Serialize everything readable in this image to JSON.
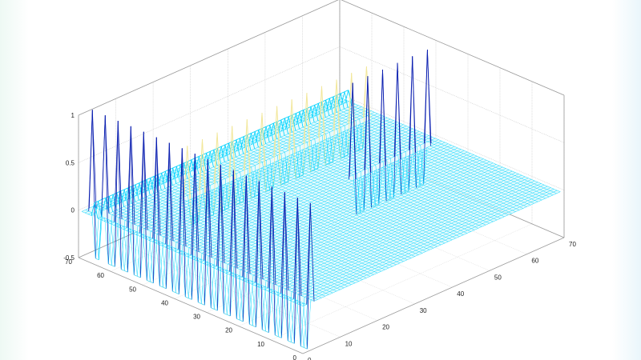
{
  "chart_data": {
    "type": "surface",
    "title": "",
    "xlabel": "",
    "ylabel": "",
    "zlabel": "",
    "xlim": [
      0,
      70
    ],
    "ylim": [
      0,
      70
    ],
    "zlim": [
      -0.5,
      1
    ],
    "grid": true,
    "legend": "none",
    "x_ticks": [
      "0",
      "10",
      "20",
      "30",
      "40",
      "50",
      "60",
      "70"
    ],
    "y_ticks": [
      "0",
      "10",
      "20",
      "30",
      "40",
      "50",
      "60",
      "70"
    ],
    "z_ticks": [
      "-0.5",
      "0",
      "0.5",
      "1"
    ],
    "grid_size": [
      70,
      70
    ],
    "baseline_z": 0,
    "colormap": [
      "#00d4ff",
      "#5ad8ee",
      "#f2e79a",
      "#0b1fb0"
    ],
    "features": [
      {
        "kind": "spike_row",
        "x": 2,
        "y_range": [
          0,
          68
        ],
        "y_step": 2,
        "z_min": -0.5,
        "z_max": 1.05
      },
      {
        "kind": "spike_row",
        "x_range": [
          46,
          66
        ],
        "y": 38,
        "x_step": 2,
        "z_min": -0.4,
        "z_max": 1.0
      },
      {
        "kind": "spike_row",
        "x_range": [
          18,
          66
        ],
        "y": 57,
        "x_step": 2,
        "z_min": -0.3,
        "z_max": 0.55
      },
      {
        "kind": "ridge",
        "x_range": [
          0,
          68
        ],
        "y": 65,
        "z": 0.15
      }
    ]
  }
}
